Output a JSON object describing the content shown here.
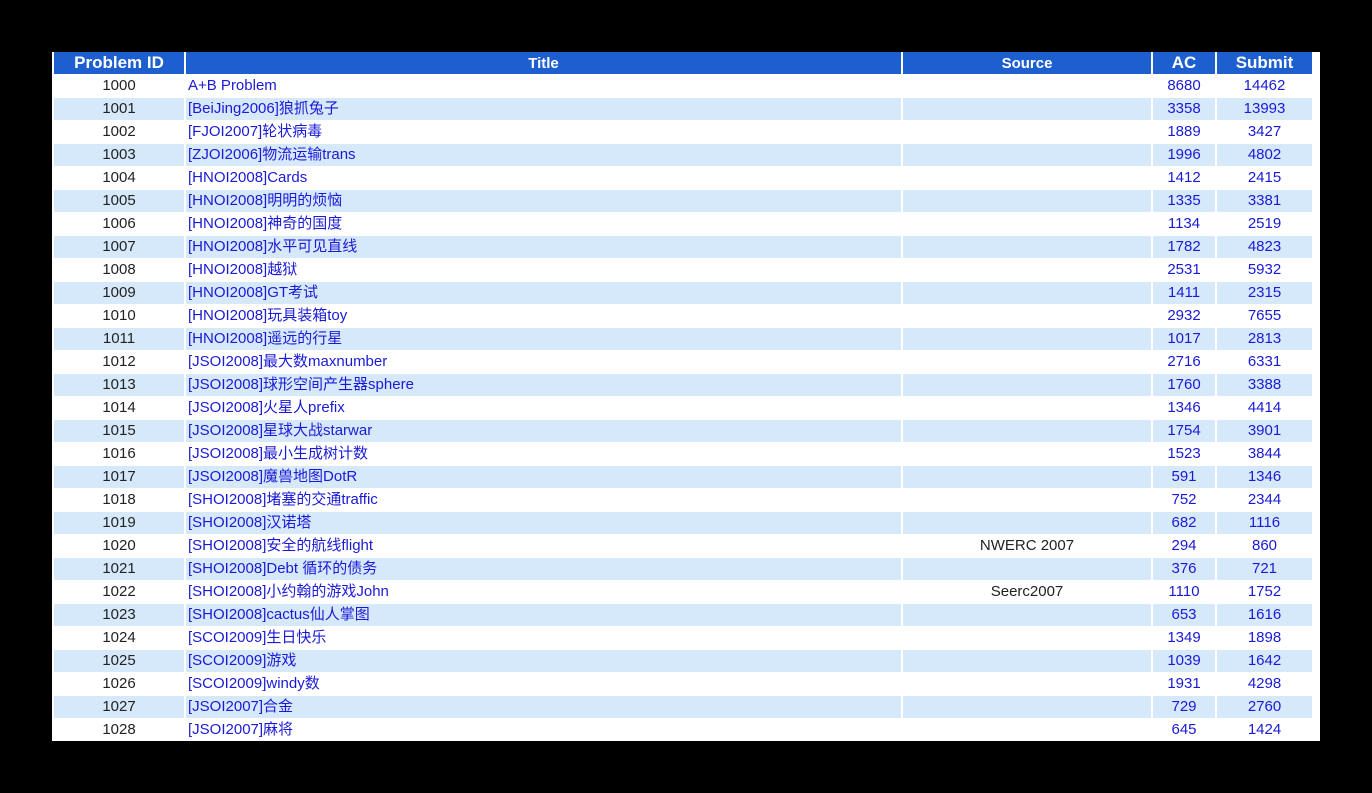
{
  "colors": {
    "header_bg": "#1e5fcf",
    "alt_row": "#d6e9fb",
    "link": "#1a1ad6"
  },
  "table": {
    "headers": [
      "Problem ID",
      "Title",
      "Source",
      "AC",
      "Submit"
    ],
    "rows": [
      {
        "id": "1000",
        "title": "A+B Problem",
        "source": "",
        "ac": "8680",
        "submit": "14462"
      },
      {
        "id": "1001",
        "title": "[BeiJing2006]狼抓兔子",
        "source": "",
        "ac": "3358",
        "submit": "13993"
      },
      {
        "id": "1002",
        "title": "[FJOI2007]轮状病毒",
        "source": "",
        "ac": "1889",
        "submit": "3427"
      },
      {
        "id": "1003",
        "title": "[ZJOI2006]物流运输trans",
        "source": "",
        "ac": "1996",
        "submit": "4802"
      },
      {
        "id": "1004",
        "title": "[HNOI2008]Cards",
        "source": "",
        "ac": "1412",
        "submit": "2415"
      },
      {
        "id": "1005",
        "title": "[HNOI2008]明明的烦恼",
        "source": "",
        "ac": "1335",
        "submit": "3381"
      },
      {
        "id": "1006",
        "title": "[HNOI2008]神奇的国度",
        "source": "",
        "ac": "1134",
        "submit": "2519"
      },
      {
        "id": "1007",
        "title": "[HNOI2008]水平可见直线",
        "source": "",
        "ac": "1782",
        "submit": "4823"
      },
      {
        "id": "1008",
        "title": "[HNOI2008]越狱",
        "source": "",
        "ac": "2531",
        "submit": "5932"
      },
      {
        "id": "1009",
        "title": "[HNOI2008]GT考试",
        "source": "",
        "ac": "1411",
        "submit": "2315"
      },
      {
        "id": "1010",
        "title": "[HNOI2008]玩具装箱toy",
        "source": "",
        "ac": "2932",
        "submit": "7655"
      },
      {
        "id": "1011",
        "title": "[HNOI2008]遥远的行星",
        "source": "",
        "ac": "1017",
        "submit": "2813"
      },
      {
        "id": "1012",
        "title": "[JSOI2008]最大数maxnumber",
        "source": "",
        "ac": "2716",
        "submit": "6331"
      },
      {
        "id": "1013",
        "title": "[JSOI2008]球形空间产生器sphere",
        "source": "",
        "ac": "1760",
        "submit": "3388"
      },
      {
        "id": "1014",
        "title": "[JSOI2008]火星人prefix",
        "source": "",
        "ac": "1346",
        "submit": "4414"
      },
      {
        "id": "1015",
        "title": "[JSOI2008]星球大战starwar",
        "source": "",
        "ac": "1754",
        "submit": "3901"
      },
      {
        "id": "1016",
        "title": "[JSOI2008]最小生成树计数",
        "source": "",
        "ac": "1523",
        "submit": "3844"
      },
      {
        "id": "1017",
        "title": "[JSOI2008]魔兽地图DotR",
        "source": "",
        "ac": "591",
        "submit": "1346"
      },
      {
        "id": "1018",
        "title": "[SHOI2008]堵塞的交通traffic",
        "source": "",
        "ac": "752",
        "submit": "2344"
      },
      {
        "id": "1019",
        "title": "[SHOI2008]汉诺塔",
        "source": "",
        "ac": "682",
        "submit": "1116"
      },
      {
        "id": "1020",
        "title": "[SHOI2008]安全的航线flight",
        "source": "NWERC 2007",
        "ac": "294",
        "submit": "860"
      },
      {
        "id": "1021",
        "title": "[SHOI2008]Debt 循环的债务",
        "source": "",
        "ac": "376",
        "submit": "721"
      },
      {
        "id": "1022",
        "title": "[SHOI2008]小约翰的游戏John",
        "source": "Seerc2007",
        "ac": "1110",
        "submit": "1752"
      },
      {
        "id": "1023",
        "title": "[SHOI2008]cactus仙人掌图",
        "source": "",
        "ac": "653",
        "submit": "1616"
      },
      {
        "id": "1024",
        "title": "[SCOI2009]生日快乐",
        "source": "",
        "ac": "1349",
        "submit": "1898"
      },
      {
        "id": "1025",
        "title": "[SCOI2009]游戏",
        "source": "",
        "ac": "1039",
        "submit": "1642"
      },
      {
        "id": "1026",
        "title": "[SCOI2009]windy数",
        "source": "",
        "ac": "1931",
        "submit": "4298"
      },
      {
        "id": "1027",
        "title": "[JSOI2007]合金",
        "source": "",
        "ac": "729",
        "submit": "2760"
      },
      {
        "id": "1028",
        "title": "[JSOI2007]麻将",
        "source": "",
        "ac": "645",
        "submit": "1424"
      }
    ]
  }
}
